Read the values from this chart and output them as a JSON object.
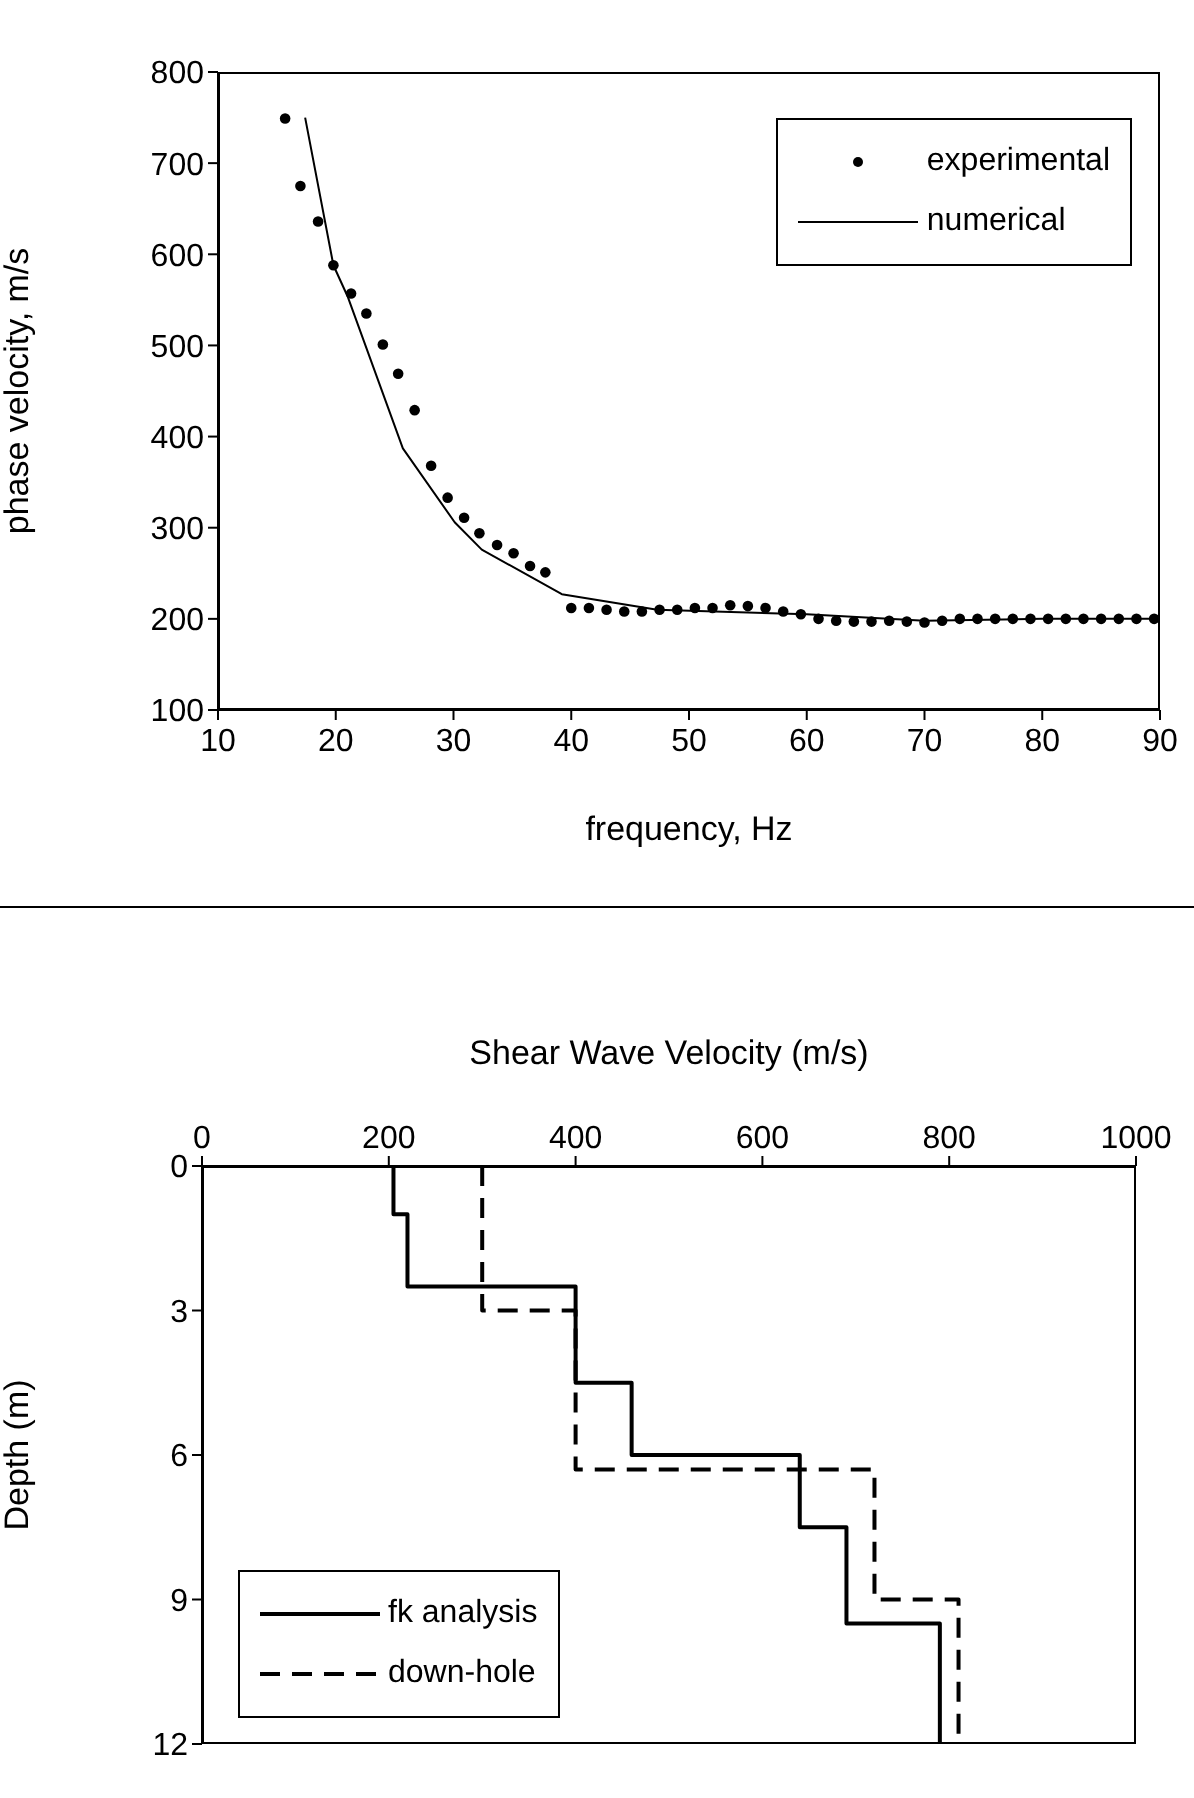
{
  "chart_data": [
    {
      "type": "line",
      "xlabel": "frequency, Hz",
      "ylabel": "phase velocity, m/s",
      "xlim": [
        10,
        90
      ],
      "xticks": [
        10,
        20,
        30,
        40,
        50,
        60,
        70,
        80,
        90
      ],
      "ylim": [
        100,
        800
      ],
      "yticks": [
        100,
        200,
        300,
        400,
        500,
        600,
        700,
        800
      ],
      "grid": false,
      "legend": "top right",
      "series": [
        {
          "name": "experimental",
          "type": "scatter",
          "marker": "circle",
          "color": "#000000",
          "x": [
            15.7,
            17.0,
            18.5,
            19.8,
            21.3,
            22.6,
            24.0,
            25.3,
            26.7,
            28.1,
            29.5,
            30.9,
            32.2,
            33.7,
            35.1,
            36.5,
            37.8,
            40.0,
            41.5,
            43.0,
            44.5,
            46.0,
            47.5,
            49.0,
            50.5,
            52.0,
            53.5,
            55.0,
            56.5,
            58.0,
            59.5,
            61.0,
            62.5,
            64.0,
            65.5,
            67.0,
            68.5,
            70.0,
            71.5,
            73.0,
            74.5,
            76.0,
            77.5,
            79.0,
            80.5,
            82.0,
            83.5,
            85.0,
            86.5,
            88.0,
            89.5
          ],
          "values": [
            749,
            675,
            636,
            588,
            557,
            535,
            501,
            469,
            429,
            368,
            333,
            311,
            294,
            281,
            272,
            258,
            251,
            212,
            212,
            210,
            208,
            208,
            210,
            210,
            212,
            212,
            215,
            214,
            212,
            208,
            205,
            200,
            198,
            197,
            197,
            198,
            197,
            196,
            198,
            200,
            200,
            200,
            200,
            200,
            200,
            200,
            200,
            200,
            200,
            200,
            200
          ]
        },
        {
          "name": "numerical",
          "color": "#000000",
          "line_style": "solid",
          "x": [
            17.4,
            19.8,
            21.0,
            25.7,
            30.1,
            32.4,
            39.2,
            47.3,
            60.0,
            70.0,
            80.0,
            90.0
          ],
          "values": [
            750,
            588,
            554,
            387,
            306,
            276,
            227,
            210,
            205,
            198,
            200,
            200
          ]
        }
      ]
    },
    {
      "type": "line",
      "xlabel": "Shear Wave Velocity (m/s)",
      "ylabel": "Depth (m)",
      "xlim": [
        0,
        1000
      ],
      "xticks": [
        0,
        200,
        400,
        600,
        800,
        1000
      ],
      "ylim": [
        12,
        0
      ],
      "yticks": [
        0,
        3,
        6,
        9,
        12
      ],
      "grid": false,
      "legend": "bottom left",
      "series": [
        {
          "name": "fk analysis",
          "color": "#000000",
          "line_style": "solid",
          "x": [
            205,
            205,
            220,
            220,
            400,
            400,
            460,
            460,
            640,
            640,
            690,
            690,
            790,
            790
          ],
          "values": [
            0,
            1,
            1,
            2.5,
            2.5,
            4.5,
            4.5,
            6,
            6,
            7.5,
            7.5,
            9.5,
            9.5,
            12
          ]
        },
        {
          "name": "down-hole",
          "color": "#000000",
          "line_style": "dashed",
          "x": [
            300,
            300,
            400,
            400,
            720,
            720,
            810,
            810
          ],
          "values": [
            0,
            3,
            3,
            6.3,
            6.3,
            9,
            9,
            12
          ]
        }
      ]
    }
  ]
}
